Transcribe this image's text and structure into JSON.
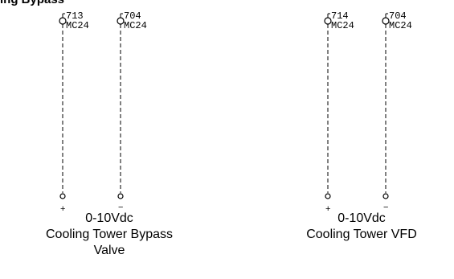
{
  "header": {
    "text": "ing Bypass"
  },
  "groups": [
    {
      "terminals": [
        {
          "number": "713",
          "code": "MC24",
          "polarity": "+"
        },
        {
          "number": "704",
          "code": "MC24",
          "polarity": "−"
        }
      ],
      "caption": {
        "signal": "0-10Vdc",
        "device_line1": "Cooling Tower Bypass",
        "device_line2": "Valve"
      }
    },
    {
      "terminals": [
        {
          "number": "714",
          "code": "MC24",
          "polarity": "+"
        },
        {
          "number": "704",
          "code": "MC24",
          "polarity": "−"
        }
      ],
      "caption": {
        "signal": "0-10Vdc",
        "device_line1": "Cooling Tower VFD"
      }
    }
  ]
}
